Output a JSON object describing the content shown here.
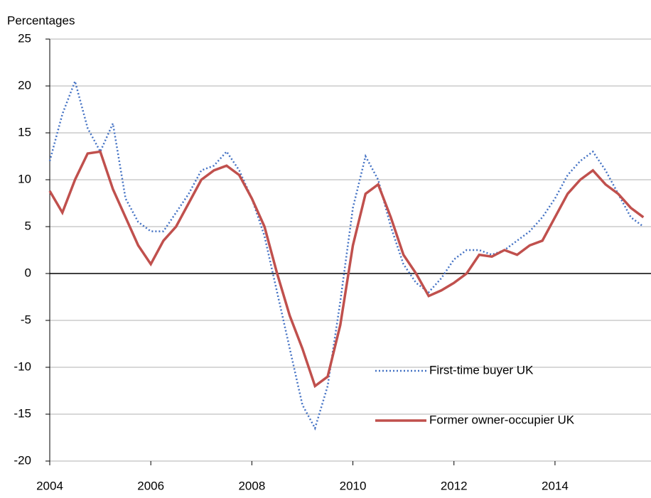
{
  "chart_data": {
    "type": "line",
    "y_label": "Percentages",
    "x": [
      2004,
      2004.25,
      2004.5,
      2004.75,
      2005,
      2005.25,
      2005.5,
      2005.75,
      2006,
      2006.25,
      2006.5,
      2006.75,
      2007,
      2007.25,
      2007.5,
      2007.75,
      2008,
      2008.25,
      2008.5,
      2008.75,
      2009,
      2009.25,
      2009.5,
      2009.75,
      2010,
      2010.25,
      2010.5,
      2010.75,
      2011,
      2011.25,
      2011.5,
      2011.75,
      2012,
      2012.25,
      2012.5,
      2012.75,
      2013,
      2013.25,
      2013.5,
      2013.75,
      2014,
      2014.25,
      2014.5,
      2014.75,
      2015,
      2015.25,
      2015.5,
      2015.75
    ],
    "series": [
      {
        "name": "First-time buyer UK",
        "color": "#4472c4",
        "dash": "dotted",
        "values": [
          12,
          17,
          20.5,
          15.5,
          13,
          16,
          8,
          5.5,
          4.5,
          4.5,
          6.5,
          8.5,
          11,
          11.5,
          13,
          11,
          8,
          4,
          -2,
          -8,
          -14,
          -16.5,
          -12,
          -3,
          7,
          12.5,
          10,
          5,
          1,
          -1,
          -2,
          -0.5,
          1.5,
          2.5,
          2.5,
          2,
          2.5,
          3.5,
          4.5,
          6,
          8,
          10.5,
          12,
          13,
          11,
          8.5,
          6,
          5
        ]
      },
      {
        "name": "Former owner-occupier UK",
        "color": "#c0504d",
        "dash": "solid",
        "values": [
          8.8,
          6.5,
          10,
          12.8,
          13,
          9,
          6,
          3,
          1,
          3.5,
          5,
          7.5,
          10,
          11,
          11.5,
          10.5,
          8,
          5,
          0,
          -4.5,
          -8,
          -12,
          -11,
          -5.5,
          3,
          8.5,
          9.5,
          6,
          2,
          0,
          -2.4,
          -1.8,
          -1,
          0,
          2,
          1.8,
          2.5,
          2,
          3,
          3.5,
          6,
          8.5,
          10,
          11,
          9.5,
          8.5,
          7,
          6
        ]
      }
    ],
    "xlim": [
      2004,
      2015.9
    ],
    "xticks": [
      2004,
      2006,
      2008,
      2010,
      2012,
      2014
    ],
    "ylim": [
      -20,
      25
    ],
    "yticks": [
      -20,
      -15,
      -10,
      -5,
      0,
      5,
      10,
      15,
      20,
      25
    ],
    "grid": true,
    "legend": "lower right"
  }
}
